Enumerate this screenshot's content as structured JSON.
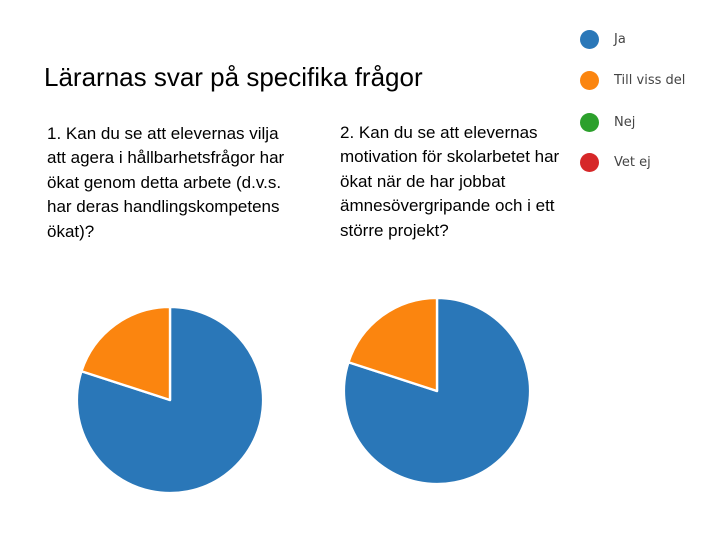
{
  "slide": {
    "title": "Lärarnas svar på specifika frågor"
  },
  "chart_data": [
    {
      "type": "pie",
      "title": "1. Kan du se att elevernas vilja att agera i hållbarhetsfrågor har ökat genom detta arbete (d.v.s. har deras handlingskompetens ökat)?",
      "categories": [
        "Ja",
        "Till viss del",
        "Nej",
        "Vet ej"
      ],
      "values": [
        80,
        20,
        0,
        0
      ],
      "unit": "percent",
      "colors": [
        "#2a77b8",
        "#fb850f",
        "#2ca02c",
        "#d62728"
      ]
    },
    {
      "type": "pie",
      "title": "2. Kan du se att elevernas motivation för skolarbetet har ökat när de har jobbat ämnesövergripande och i ett större projekt?",
      "categories": [
        "Ja",
        "Till viss del",
        "Nej",
        "Vet ej"
      ],
      "values": [
        80,
        20,
        0,
        0
      ],
      "unit": "percent",
      "colors": [
        "#2a77b8",
        "#fb850f",
        "#2ca02c",
        "#d62728"
      ]
    }
  ],
  "legend": {
    "items": [
      {
        "label": "Ja",
        "color": "#2a77b8"
      },
      {
        "label": "Till viss del",
        "color": "#fb850f"
      },
      {
        "label": "Nej",
        "color": "#2ca02c"
      },
      {
        "label": "Vet ej",
        "color": "#d62728"
      }
    ]
  }
}
